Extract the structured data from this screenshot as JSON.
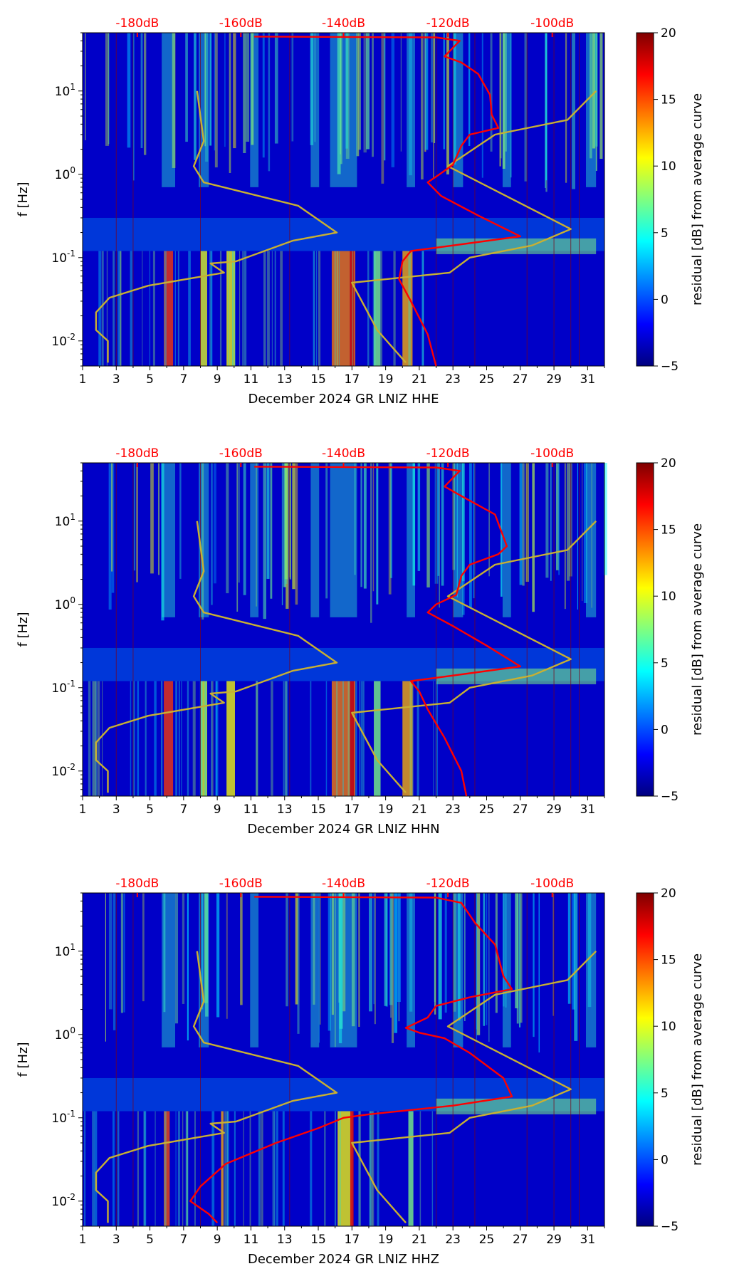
{
  "chart_data": [
    {
      "type": "heatmap",
      "title": "",
      "xlabel": "December 2024 GR LNIZ  HHE",
      "ylabel": "f [Hz]",
      "x_ticks": [
        "1",
        "3",
        "5",
        "7",
        "9",
        "11",
        "13",
        "15",
        "17",
        "19",
        "21",
        "23",
        "25",
        "27",
        "29",
        "31"
      ],
      "xlim": [
        1,
        32
      ],
      "y_ticks": [
        "10^-2",
        "10^-1",
        "10^0",
        "10^1"
      ],
      "ylim_hz": [
        0.005,
        50
      ],
      "top_axis_ticks": [
        "-180dB",
        "-160dB",
        "-140dB",
        "-120dB",
        "-100dB"
      ],
      "colorbar": {
        "label": "residual [dB] from average curve",
        "min": -5,
        "max": 20,
        "ticks": [
          "20",
          "15",
          "10",
          "5",
          "0",
          "−5"
        ]
      },
      "series": [
        {
          "name": "reference noise model",
          "color": "#c8b032",
          "points": [
            [
              7.8,
              10
            ],
            [
              8.2,
              2.5
            ],
            [
              7.6,
              1.25
            ],
            [
              8.2,
              0.8
            ],
            [
              13.8,
              0.42
            ],
            [
              16.1,
              0.2
            ],
            [
              13.5,
              0.16
            ],
            [
              10.1,
              0.09
            ],
            [
              8.6,
              0.085
            ],
            [
              9.4,
              0.066
            ],
            [
              4.9,
              0.046
            ],
            [
              2.6,
              0.033
            ],
            [
              1.8,
              0.022
            ],
            [
              1.8,
              0.0135
            ],
            [
              2.5,
              0.01
            ],
            [
              2.5,
              0.0055
            ]
          ]
        },
        {
          "name": "reference noise model (right)",
          "color": "#c8b032",
          "points": [
            [
              31.5,
              10
            ],
            [
              29.8,
              4.5
            ],
            [
              25.5,
              3
            ],
            [
              22.7,
              1.25
            ],
            [
              30,
              0.22
            ],
            [
              27.7,
              0.14
            ],
            [
              24,
              0.1
            ],
            [
              22.8,
              0.066
            ],
            [
              17,
              0.05
            ],
            [
              18.5,
              0.0135
            ],
            [
              20.2,
              0.0055
            ]
          ]
        },
        {
          "name": "median PSD",
          "color": "#ff0000",
          "points": [
            [
              11.2,
              45
            ],
            [
              22,
              44
            ],
            [
              23.4,
              40
            ],
            [
              22.5,
              26
            ],
            [
              23.5,
              22
            ],
            [
              24.5,
              16
            ],
            [
              25.2,
              9
            ],
            [
              25.3,
              5.2
            ],
            [
              25.7,
              3.6
            ],
            [
              24,
              3
            ],
            [
              23.5,
              2.2
            ],
            [
              23,
              1.3
            ],
            [
              22.2,
              1
            ],
            [
              21.5,
              0.8
            ],
            [
              22.3,
              0.55
            ],
            [
              24.5,
              0.32
            ],
            [
              27,
              0.18
            ],
            [
              23,
              0.14
            ],
            [
              20.5,
              0.12
            ],
            [
              20,
              0.09
            ],
            [
              19.8,
              0.055
            ],
            [
              20.5,
              0.03
            ],
            [
              21.5,
              0.012
            ],
            [
              22,
              0.005
            ]
          ]
        }
      ]
    },
    {
      "type": "heatmap",
      "title": "",
      "xlabel": "December 2024 GR LNIZ  HHN",
      "ylabel": "f [Hz]",
      "x_ticks": [
        "1",
        "3",
        "5",
        "7",
        "9",
        "11",
        "13",
        "15",
        "17",
        "19",
        "21",
        "23",
        "25",
        "27",
        "29",
        "31"
      ],
      "xlim": [
        1,
        32
      ],
      "y_ticks": [
        "10^-2",
        "10^-1",
        "10^0",
        "10^1"
      ],
      "ylim_hz": [
        0.005,
        50
      ],
      "top_axis_ticks": [
        "-180dB",
        "-160dB",
        "-140dB",
        "-120dB",
        "-100dB"
      ],
      "colorbar": {
        "label": "residual [dB] from average curve",
        "min": -5,
        "max": 20,
        "ticks": [
          "20",
          "15",
          "10",
          "5",
          "0",
          "−5"
        ]
      },
      "series": [
        {
          "name": "reference noise model",
          "color": "#c8b032",
          "points": [
            [
              7.8,
              10
            ],
            [
              8.2,
              2.5
            ],
            [
              7.6,
              1.25
            ],
            [
              8.2,
              0.8
            ],
            [
              13.8,
              0.42
            ],
            [
              16.1,
              0.2
            ],
            [
              13.5,
              0.16
            ],
            [
              10.1,
              0.09
            ],
            [
              8.6,
              0.085
            ],
            [
              9.4,
              0.066
            ],
            [
              4.9,
              0.046
            ],
            [
              2.6,
              0.033
            ],
            [
              1.8,
              0.022
            ],
            [
              1.8,
              0.0135
            ],
            [
              2.5,
              0.01
            ],
            [
              2.5,
              0.0055
            ]
          ]
        },
        {
          "name": "reference noise model (right)",
          "color": "#c8b032",
          "points": [
            [
              31.5,
              10
            ],
            [
              29.8,
              4.5
            ],
            [
              25.5,
              3
            ],
            [
              22.7,
              1.25
            ],
            [
              30,
              0.22
            ],
            [
              27.7,
              0.14
            ],
            [
              24,
              0.1
            ],
            [
              22.8,
              0.066
            ],
            [
              17,
              0.05
            ],
            [
              18.5,
              0.0135
            ],
            [
              20.2,
              0.0055
            ]
          ]
        },
        {
          "name": "median PSD",
          "color": "#ff0000",
          "points": [
            [
              11.2,
              45
            ],
            [
              22,
              44
            ],
            [
              23.4,
              40
            ],
            [
              22.5,
              26
            ],
            [
              23.5,
              20
            ],
            [
              25.5,
              12
            ],
            [
              26.2,
              5
            ],
            [
              25.7,
              4
            ],
            [
              24,
              3
            ],
            [
              23.5,
              2.2
            ],
            [
              23.2,
              1.3
            ],
            [
              22,
              1
            ],
            [
              21.5,
              0.8
            ],
            [
              23,
              0.55
            ],
            [
              25,
              0.32
            ],
            [
              27,
              0.18
            ],
            [
              23,
              0.14
            ],
            [
              20.5,
              0.12
            ],
            [
              21,
              0.09
            ],
            [
              21.5,
              0.055
            ],
            [
              22.5,
              0.025
            ],
            [
              23.5,
              0.01
            ],
            [
              23.8,
              0.005
            ]
          ]
        }
      ]
    },
    {
      "type": "heatmap",
      "title": "",
      "xlabel": "December 2024 GR LNIZ  HHZ",
      "ylabel": "f [Hz]",
      "x_ticks": [
        "1",
        "3",
        "5",
        "7",
        "9",
        "11",
        "13",
        "15",
        "17",
        "19",
        "21",
        "23",
        "25",
        "27",
        "29",
        "31"
      ],
      "xlim": [
        1,
        32
      ],
      "y_ticks": [
        "10^-2",
        "10^-1",
        "10^0",
        "10^1"
      ],
      "ylim_hz": [
        0.005,
        50
      ],
      "top_axis_ticks": [
        "-180dB",
        "-160dB",
        "-140dB",
        "-120dB",
        "-100dB"
      ],
      "colorbar": {
        "label": "residual [dB] from average curve",
        "min": -5,
        "max": 20,
        "ticks": [
          "20",
          "15",
          "10",
          "5",
          "0",
          "−5"
        ]
      },
      "series": [
        {
          "name": "reference noise model",
          "color": "#c8b032",
          "points": [
            [
              7.8,
              10
            ],
            [
              8.2,
              2.5
            ],
            [
              7.6,
              1.25
            ],
            [
              8.2,
              0.8
            ],
            [
              13.8,
              0.42
            ],
            [
              16.1,
              0.2
            ],
            [
              13.5,
              0.16
            ],
            [
              10.1,
              0.09
            ],
            [
              8.6,
              0.085
            ],
            [
              9.4,
              0.066
            ],
            [
              4.9,
              0.046
            ],
            [
              2.6,
              0.033
            ],
            [
              1.8,
              0.022
            ],
            [
              1.8,
              0.0135
            ],
            [
              2.5,
              0.01
            ],
            [
              2.5,
              0.0055
            ]
          ]
        },
        {
          "name": "reference noise model (right)",
          "color": "#c8b032",
          "points": [
            [
              31.5,
              10
            ],
            [
              29.8,
              4.5
            ],
            [
              25.5,
              3
            ],
            [
              22.7,
              1.25
            ],
            [
              30,
              0.22
            ],
            [
              27.7,
              0.14
            ],
            [
              24,
              0.1
            ],
            [
              22.8,
              0.066
            ],
            [
              17,
              0.05
            ],
            [
              18.5,
              0.0135
            ],
            [
              20.2,
              0.0055
            ]
          ]
        },
        {
          "name": "median PSD",
          "color": "#ff0000",
          "points": [
            [
              11.2,
              45
            ],
            [
              22,
              44
            ],
            [
              23.5,
              38
            ],
            [
              24.3,
              22
            ],
            [
              25.5,
              12
            ],
            [
              26,
              5
            ],
            [
              26.5,
              3.5
            ],
            [
              24,
              2.8
            ],
            [
              22,
              2.2
            ],
            [
              21.5,
              1.6
            ],
            [
              20.2,
              1.2
            ],
            [
              21,
              1.05
            ],
            [
              22.5,
              0.9
            ],
            [
              24,
              0.6
            ],
            [
              26,
              0.3
            ],
            [
              26.5,
              0.18
            ],
            [
              23,
              0.14
            ],
            [
              18,
              0.11
            ],
            [
              16.5,
              0.1
            ],
            [
              15,
              0.075
            ],
            [
              12.5,
              0.05
            ],
            [
              9.5,
              0.028
            ],
            [
              8,
              0.015
            ],
            [
              7.4,
              0.01
            ],
            [
              8.5,
              0.007
            ],
            [
              9,
              0.0055
            ]
          ]
        }
      ]
    }
  ]
}
